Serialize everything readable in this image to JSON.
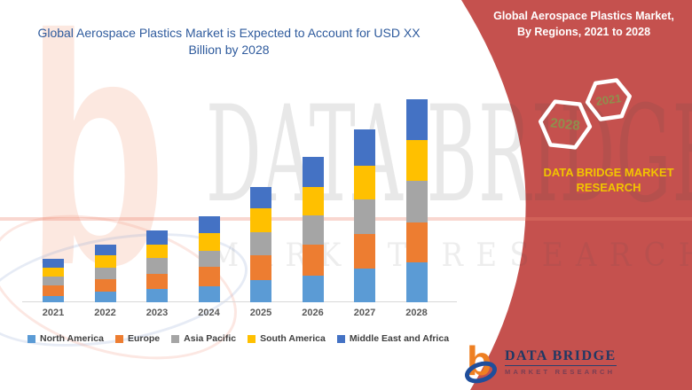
{
  "title": "Global Aerospace Plastics Market is Expected to Account for USD XX Billion by 2028",
  "chart_data": {
    "type": "bar",
    "stacked": true,
    "title": "Global Aerospace Plastics Market is Expected to Account for USD XX Billion by 2028",
    "xlabel": "",
    "ylabel": "",
    "grid": false,
    "legend_position": "bottom",
    "y_axis_shown": false,
    "units": "relative (no y-axis values shown)",
    "categories": [
      "2021",
      "2022",
      "2023",
      "2024",
      "2025",
      "2026",
      "2027",
      "2028"
    ],
    "series": [
      {
        "name": "North America",
        "color": "#5B9BD5",
        "values": [
          7,
          12,
          15,
          18,
          25,
          30,
          38,
          45
        ]
      },
      {
        "name": "Europe",
        "color": "#ED7D31",
        "values": [
          12,
          14,
          17,
          22,
          28,
          35,
          39,
          45
        ]
      },
      {
        "name": "Asia Pacific",
        "color": "#A5A5A5",
        "values": [
          10,
          13,
          18,
          18,
          26,
          33,
          39,
          47
        ]
      },
      {
        "name": "South America",
        "color": "#FFC000",
        "values": [
          10,
          14,
          15,
          20,
          27,
          32,
          38,
          46
        ]
      },
      {
        "name": "Middle East and Africa",
        "color": "#4472C4",
        "values": [
          10,
          12,
          16,
          19,
          24,
          34,
          41,
          46
        ]
      }
    ]
  },
  "side_panel": {
    "title": "Global Aerospace Plastics Market,\nBy Regions, 2021 to 2028",
    "hexagons": [
      {
        "label": "2028"
      },
      {
        "label": "2021"
      }
    ],
    "brand_text": "DATA BRIDGE MARKET RESEARCH",
    "colors": {
      "panel_red": "#C5514E",
      "brand_yellow": "#F2C400",
      "hexagon_text": "#8F8F4D"
    }
  },
  "logo": {
    "name": "DATA BRIDGE",
    "subtitle": "MARKET RESEARCH"
  },
  "watermark": {
    "logo_glyph": "b",
    "line1": "DATA BRIDGE",
    "line2": "MARKET RESEARCH"
  }
}
